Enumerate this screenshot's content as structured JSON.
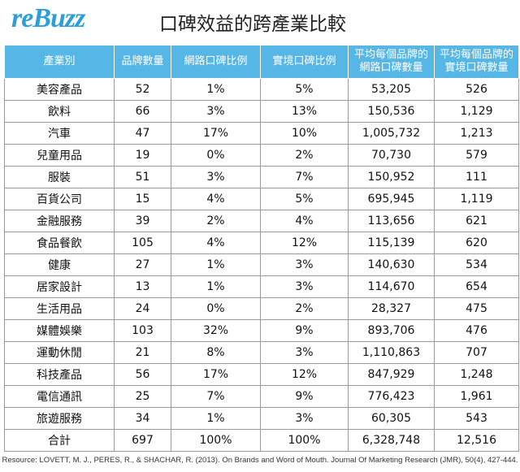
{
  "header": {
    "logo": "reBuzz",
    "title": "口碑效益的跨產業比較"
  },
  "table": {
    "columns": [
      "產業別",
      "品牌數量",
      "網路口碑比例",
      "實境口碑比例",
      "平均每個品牌的\n網路口碑數量",
      "平均每個品牌的\n實境口碑數量"
    ],
    "rows": [
      [
        "美容產品",
        "52",
        "1%",
        "5%",
        "53,205",
        "526"
      ],
      [
        "飲料",
        "66",
        "3%",
        "13%",
        "150,536",
        "1,129"
      ],
      [
        "汽車",
        "47",
        "17%",
        "10%",
        "1,005,732",
        "1,213"
      ],
      [
        "兒童用品",
        "19",
        "0%",
        "2%",
        "70,730",
        "579"
      ],
      [
        "服裝",
        "51",
        "3%",
        "7%",
        "150,952",
        "111"
      ],
      [
        "百貨公司",
        "15",
        "4%",
        "5%",
        "695,945",
        "1,119"
      ],
      [
        "金融服務",
        "39",
        "2%",
        "4%",
        "113,656",
        "621"
      ],
      [
        "食品餐飲",
        "105",
        "4%",
        "12%",
        "115,139",
        "620"
      ],
      [
        "健康",
        "27",
        "1%",
        "3%",
        "140,630",
        "534"
      ],
      [
        "居家設計",
        "13",
        "1%",
        "3%",
        "114,670",
        "654"
      ],
      [
        "生活用品",
        "24",
        "0%",
        "2%",
        "28,327",
        "475"
      ],
      [
        "媒體娛樂",
        "103",
        "32%",
        "9%",
        "893,706",
        "476"
      ],
      [
        "運動休閒",
        "21",
        "8%",
        "3%",
        "1,110,863",
        "707"
      ],
      [
        "科技產品",
        "56",
        "17%",
        "12%",
        "847,929",
        "1,248"
      ],
      [
        "電信通訊",
        "25",
        "7%",
        "9%",
        "776,423",
        "1,961"
      ],
      [
        "旅遊服務",
        "34",
        "1%",
        "3%",
        "60,305",
        "543"
      ],
      [
        "合計",
        "697",
        "100%",
        "100%",
        "6,328,748",
        "12,516"
      ]
    ]
  },
  "footer": {
    "resource": "Resource: LOVETT, M. J., PERES, R., & SHACHAR, R. (2013). On Brands and Word of Mouth. Journal Of Marketing Research (JMR), 50(4), 427-444."
  }
}
